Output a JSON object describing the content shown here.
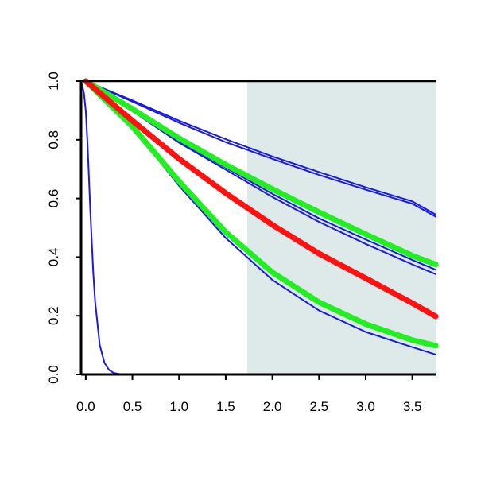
{
  "chart_data": {
    "type": "line",
    "title": "",
    "xlabel": "",
    "ylabel": "",
    "xlim": [
      -0.05,
      3.75
    ],
    "ylim": [
      0.0,
      1.0
    ],
    "x_ticks": [
      {
        "value": 0.0,
        "label": "0.0"
      },
      {
        "value": 0.5,
        "label": "0.5"
      },
      {
        "value": 1.0,
        "label": "1.0"
      },
      {
        "value": 1.5,
        "label": "1.5"
      },
      {
        "value": 2.0,
        "label": "2.0"
      },
      {
        "value": 2.5,
        "label": "2.5"
      },
      {
        "value": 3.0,
        "label": "3.0"
      },
      {
        "value": 3.5,
        "label": "3.5"
      }
    ],
    "y_ticks": [
      {
        "value": 0.0,
        "label": "0.0"
      },
      {
        "value": 0.2,
        "label": "0.2"
      },
      {
        "value": 0.4,
        "label": "0.4"
      },
      {
        "value": 0.6,
        "label": "0.6"
      },
      {
        "value": 0.8,
        "label": "0.8"
      },
      {
        "value": 1.0,
        "label": "1.0"
      }
    ],
    "shaded_region": {
      "x_from": 1.73,
      "x_to": 3.75,
      "color": "#deeaea"
    },
    "grid": false,
    "legend": "none",
    "series": [
      {
        "color": "#1a1ae6",
        "width": "thin",
        "x": [
          0,
          0.5,
          1.0,
          1.5,
          2.0,
          2.5,
          3.0,
          3.5,
          3.75
        ],
        "y": [
          1.0,
          0.934,
          0.865,
          0.802,
          0.743,
          0.69,
          0.638,
          0.59,
          0.545
        ]
      },
      {
        "color": "#1a1ae6",
        "width": "thin",
        "x": [
          0,
          0.5,
          1.0,
          1.5,
          2.0,
          2.5,
          3.0,
          3.5,
          3.75
        ],
        "y": [
          1.0,
          0.93,
          0.858,
          0.792,
          0.735,
          0.68,
          0.63,
          0.582,
          0.538
        ]
      },
      {
        "color": "#1a1ae6",
        "width": "thin",
        "x": [
          0,
          0.5,
          1.0,
          1.5,
          2.0,
          2.5,
          3.0,
          3.5,
          3.75
        ],
        "y": [
          1.0,
          0.902,
          0.795,
          0.705,
          0.616,
          0.532,
          0.46,
          0.39,
          0.357
        ]
      },
      {
        "color": "#1a1ae6",
        "width": "thin",
        "x": [
          0,
          0.5,
          1.0,
          1.5,
          2.0,
          2.5,
          3.0,
          3.5,
          3.75
        ],
        "y": [
          1.0,
          0.898,
          0.79,
          0.698,
          0.605,
          0.52,
          0.445,
          0.375,
          0.342
        ]
      },
      {
        "color": "#1a1ae6",
        "width": "thin",
        "x": [
          0,
          0.5,
          1.0,
          1.5,
          2.0,
          2.5,
          3.0,
          3.5,
          3.75
        ],
        "y": [
          1.0,
          0.842,
          0.643,
          0.465,
          0.322,
          0.218,
          0.145,
          0.093,
          0.068
        ]
      },
      {
        "color": "#1a1ae6",
        "width": "thin",
        "x": [
          -0.05,
          -0.02,
          0.0,
          0.02,
          0.05,
          0.08,
          0.1,
          0.15,
          0.2,
          0.25,
          0.3,
          0.35,
          0.4,
          0.5,
          1.0,
          2.0,
          3.0,
          3.75
        ],
        "y": [
          1.0,
          0.96,
          0.9,
          0.78,
          0.55,
          0.35,
          0.25,
          0.1,
          0.04,
          0.015,
          0.005,
          0.002,
          0.0,
          0.0,
          0.0,
          0.0,
          0.0,
          0.0
        ]
      },
      {
        "color": "#22ee22",
        "width": "thick",
        "x": [
          0,
          0.5,
          1.0,
          1.5,
          2.0,
          2.5,
          3.0,
          3.5,
          3.75
        ],
        "y": [
          1.0,
          0.905,
          0.805,
          0.715,
          0.632,
          0.553,
          0.478,
          0.405,
          0.375
        ]
      },
      {
        "color": "#22ee22",
        "width": "thick",
        "x": [
          0,
          0.5,
          1.0,
          1.5,
          2.0,
          2.5,
          3.0,
          3.5,
          3.75
        ],
        "y": [
          1.0,
          0.845,
          0.658,
          0.485,
          0.348,
          0.246,
          0.172,
          0.117,
          0.098
        ]
      },
      {
        "color": "#ff1111",
        "width": "thick",
        "x": [
          0,
          0.5,
          1.0,
          1.5,
          2.0,
          2.5,
          3.0,
          3.5,
          3.75
        ],
        "y": [
          1.0,
          0.865,
          0.735,
          0.618,
          0.51,
          0.412,
          0.328,
          0.243,
          0.198
        ]
      }
    ]
  }
}
